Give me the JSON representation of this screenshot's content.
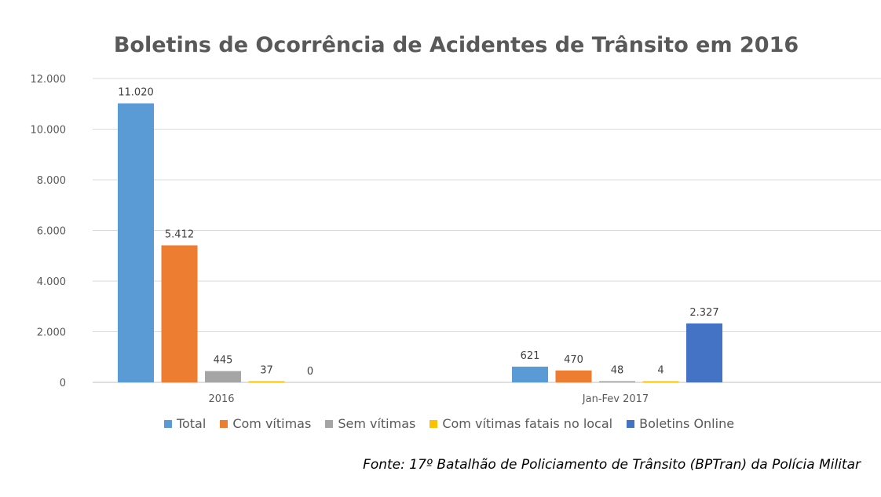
{
  "chart_data": {
    "type": "bar",
    "title": "Boletins de Ocorrência de Acidentes de Trânsito em 2016",
    "categories": [
      "2016",
      "Jan-Fev 2017"
    ],
    "series": [
      {
        "name": "Total",
        "color": "#5B9BD5",
        "values": [
          11020,
          621
        ],
        "labels": [
          "11.020",
          "621"
        ]
      },
      {
        "name": "Com vítimas",
        "color": "#ED7D31",
        "values": [
          5412,
          470
        ],
        "labels": [
          "5.412",
          "470"
        ]
      },
      {
        "name": "Sem vítimas",
        "color": "#A5A5A5",
        "values": [
          445,
          48
        ],
        "labels": [
          "445",
          "48"
        ]
      },
      {
        "name": "Com vítimas fatais no local",
        "color": "#FFC000",
        "values": [
          37,
          4
        ],
        "labels": [
          "37",
          "4"
        ]
      },
      {
        "name": "Boletins Online",
        "color": "#4472C4",
        "values": [
          0,
          2327
        ],
        "labels": [
          "0",
          "2.327"
        ]
      }
    ],
    "ylim": [
      0,
      12000
    ],
    "yticks": [
      0,
      2000,
      4000,
      6000,
      8000,
      10000,
      12000
    ],
    "ytick_labels": [
      "0",
      "2.000",
      "4.000",
      "6.000",
      "8.000",
      "10.000",
      "12.000"
    ],
    "grid": true,
    "legend": "bottom"
  },
  "source": "Fonte: 17º Batalhão de Policiamento de Trânsito (BPTran) da Polícia Militar"
}
